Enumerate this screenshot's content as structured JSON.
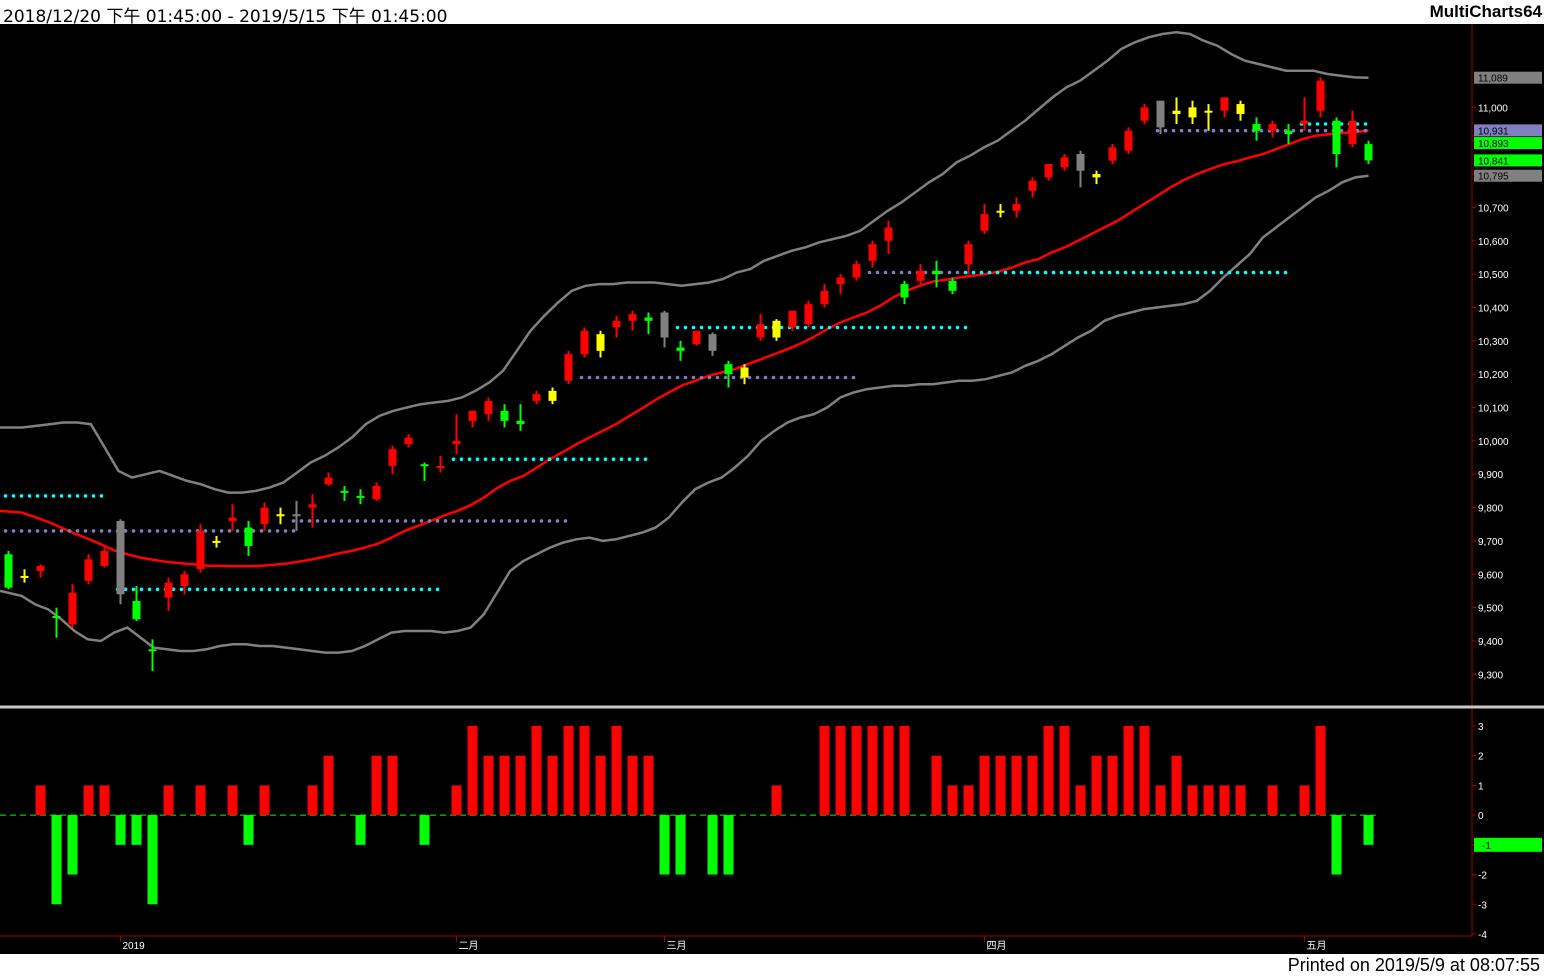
{
  "header": {
    "date_range": "2018/12/20 下午 01:45:00 - 2019/5/15 下午 01:45:00",
    "app_name": "MultiCharts64"
  },
  "footer": {
    "printed": "Printed on 2019/5/9 at 08:07:55"
  },
  "colors": {
    "up": "#ff0000",
    "down": "#00ff00",
    "yellow": "#ffff00",
    "gray": "#808080",
    "cyan": "#00ffff",
    "purple": "#8080c0",
    "background": "#000000"
  },
  "chart_data": [
    {
      "type": "candlestick",
      "title": "",
      "x_labels": [
        "2019",
        "二月",
        "三月",
        "四月",
        "五月"
      ],
      "y_ticks": [
        9300,
        9400,
        9500,
        9600,
        9700,
        9800,
        9900,
        10000,
        10100,
        10200,
        10300,
        10400,
        10500,
        10600,
        10700,
        10800,
        10900,
        11000
      ],
      "ylim": [
        9220,
        11250
      ],
      "price_tags": [
        {
          "value": 11089,
          "label": "11,089",
          "color": "#808080"
        },
        {
          "value": 10931,
          "label": "10,931",
          "color": "#8080c0"
        },
        {
          "value": 10893,
          "label": "10,893",
          "color": "#00ff00"
        },
        {
          "value": 10841,
          "label": "10,841",
          "color": "#00ff00"
        },
        {
          "value": 10795,
          "label": "10,795",
          "color": "#808080"
        }
      ],
      "candles": [
        {
          "o": 9660,
          "h": 9670,
          "l": 9555,
          "c": 9560,
          "col": "g"
        },
        {
          "o": 9595,
          "h": 9615,
          "l": 9575,
          "c": 9595,
          "col": "y"
        },
        {
          "o": 9610,
          "h": 9630,
          "l": 9590,
          "c": 9625,
          "col": "r"
        },
        {
          "o": 9475,
          "h": 9500,
          "l": 9410,
          "c": 9475,
          "col": "g"
        },
        {
          "o": 9450,
          "h": 9570,
          "l": 9440,
          "c": 9545,
          "col": "r"
        },
        {
          "o": 9580,
          "h": 9660,
          "l": 9570,
          "c": 9645,
          "col": "r"
        },
        {
          "o": 9625,
          "h": 9680,
          "l": 9620,
          "c": 9670,
          "col": "r"
        },
        {
          "o": 9760,
          "h": 9765,
          "l": 9510,
          "c": 9540,
          "col": "gr"
        },
        {
          "o": 9520,
          "h": 9565,
          "l": 9460,
          "c": 9465,
          "col": "g"
        },
        {
          "o": 9375,
          "h": 9405,
          "l": 9310,
          "c": 9375,
          "col": "g"
        },
        {
          "o": 9530,
          "h": 9590,
          "l": 9490,
          "c": 9575,
          "col": "r"
        },
        {
          "o": 9565,
          "h": 9610,
          "l": 9540,
          "c": 9600,
          "col": "r"
        },
        {
          "o": 9615,
          "h": 9750,
          "l": 9605,
          "c": 9730,
          "col": "r"
        },
        {
          "o": 9700,
          "h": 9715,
          "l": 9680,
          "c": 9700,
          "col": "y"
        },
        {
          "o": 9760,
          "h": 9810,
          "l": 9730,
          "c": 9770,
          "col": "r"
        },
        {
          "o": 9740,
          "h": 9760,
          "l": 9655,
          "c": 9685,
          "col": "g"
        },
        {
          "o": 9750,
          "h": 9815,
          "l": 9730,
          "c": 9800,
          "col": "r"
        },
        {
          "o": 9780,
          "h": 9800,
          "l": 9750,
          "c": 9780,
          "col": "y"
        },
        {
          "o": 9780,
          "h": 9820,
          "l": 9730,
          "c": 9780,
          "col": "gr"
        },
        {
          "o": 9800,
          "h": 9840,
          "l": 9740,
          "c": 9810,
          "col": "r"
        },
        {
          "o": 9870,
          "h": 9905,
          "l": 9865,
          "c": 9890,
          "col": "r"
        },
        {
          "o": 9850,
          "h": 9865,
          "l": 9820,
          "c": 9850,
          "col": "g"
        },
        {
          "o": 9835,
          "h": 9855,
          "l": 9810,
          "c": 9830,
          "col": "g"
        },
        {
          "o": 9825,
          "h": 9875,
          "l": 9820,
          "c": 9865,
          "col": "r"
        },
        {
          "o": 9925,
          "h": 9985,
          "l": 9900,
          "c": 9975,
          "col": "r"
        },
        {
          "o": 9990,
          "h": 10020,
          "l": 9980,
          "c": 10010,
          "col": "r"
        },
        {
          "o": 9930,
          "h": 9935,
          "l": 9880,
          "c": 9930,
          "col": "g"
        },
        {
          "o": 9920,
          "h": 9955,
          "l": 9905,
          "c": 9925,
          "col": "r"
        },
        {
          "o": 9990,
          "h": 10080,
          "l": 9960,
          "c": 10000,
          "col": "r"
        },
        {
          "o": 10060,
          "h": 10090,
          "l": 10040,
          "c": 10090,
          "col": "r"
        },
        {
          "o": 10080,
          "h": 10130,
          "l": 10060,
          "c": 10120,
          "col": "r"
        },
        {
          "o": 10090,
          "h": 10110,
          "l": 10040,
          "c": 10060,
          "col": "g"
        },
        {
          "o": 10060,
          "h": 10110,
          "l": 10030,
          "c": 10050,
          "col": "g"
        },
        {
          "o": 10120,
          "h": 10150,
          "l": 10110,
          "c": 10140,
          "col": "r"
        },
        {
          "o": 10150,
          "h": 10160,
          "l": 10110,
          "c": 10120,
          "col": "y"
        },
        {
          "o": 10180,
          "h": 10270,
          "l": 10170,
          "c": 10260,
          "col": "r"
        },
        {
          "o": 10260,
          "h": 10340,
          "l": 10250,
          "c": 10330,
          "col": "r"
        },
        {
          "o": 10320,
          "h": 10330,
          "l": 10250,
          "c": 10270,
          "col": "y"
        },
        {
          "o": 10340,
          "h": 10375,
          "l": 10310,
          "c": 10360,
          "col": "r"
        },
        {
          "o": 10360,
          "h": 10390,
          "l": 10330,
          "c": 10380,
          "col": "r"
        },
        {
          "o": 10370,
          "h": 10385,
          "l": 10320,
          "c": 10360,
          "col": "g"
        },
        {
          "o": 10385,
          "h": 10390,
          "l": 10280,
          "c": 10310,
          "col": "gr"
        },
        {
          "o": 10280,
          "h": 10300,
          "l": 10240,
          "c": 10270,
          "col": "g"
        },
        {
          "o": 10290,
          "h": 10330,
          "l": 10285,
          "c": 10330,
          "col": "r"
        },
        {
          "o": 10320,
          "h": 10325,
          "l": 10255,
          "c": 10270,
          "col": "gr"
        },
        {
          "o": 10230,
          "h": 10240,
          "l": 10160,
          "c": 10200,
          "col": "g"
        },
        {
          "o": 10190,
          "h": 10230,
          "l": 10170,
          "c": 10220,
          "col": "y"
        },
        {
          "o": 10310,
          "h": 10380,
          "l": 10300,
          "c": 10350,
          "col": "r"
        },
        {
          "o": 10360,
          "h": 10365,
          "l": 10300,
          "c": 10310,
          "col": "y"
        },
        {
          "o": 10340,
          "h": 10390,
          "l": 10330,
          "c": 10390,
          "col": "r"
        },
        {
          "o": 10350,
          "h": 10420,
          "l": 10340,
          "c": 10410,
          "col": "r"
        },
        {
          "o": 10410,
          "h": 10470,
          "l": 10400,
          "c": 10450,
          "col": "r"
        },
        {
          "o": 10470,
          "h": 10500,
          "l": 10440,
          "c": 10490,
          "col": "r"
        },
        {
          "o": 10490,
          "h": 10540,
          "l": 10480,
          "c": 10530,
          "col": "r"
        },
        {
          "o": 10540,
          "h": 10600,
          "l": 10520,
          "c": 10590,
          "col": "r"
        },
        {
          "o": 10600,
          "h": 10660,
          "l": 10560,
          "c": 10640,
          "col": "r"
        },
        {
          "o": 10470,
          "h": 10480,
          "l": 10410,
          "c": 10430,
          "col": "g"
        },
        {
          "o": 10480,
          "h": 10530,
          "l": 10470,
          "c": 10510,
          "col": "r"
        },
        {
          "o": 10510,
          "h": 10540,
          "l": 10460,
          "c": 10500,
          "col": "g"
        },
        {
          "o": 10480,
          "h": 10490,
          "l": 10440,
          "c": 10450,
          "col": "g"
        },
        {
          "o": 10530,
          "h": 10600,
          "l": 10500,
          "c": 10590,
          "col": "r"
        },
        {
          "o": 10630,
          "h": 10710,
          "l": 10620,
          "c": 10680,
          "col": "r"
        },
        {
          "o": 10690,
          "h": 10710,
          "l": 10670,
          "c": 10690,
          "col": "y"
        },
        {
          "o": 10690,
          "h": 10730,
          "l": 10670,
          "c": 10710,
          "col": "r"
        },
        {
          "o": 10750,
          "h": 10790,
          "l": 10730,
          "c": 10780,
          "col": "r"
        },
        {
          "o": 10790,
          "h": 10830,
          "l": 10780,
          "c": 10830,
          "col": "r"
        },
        {
          "o": 10820,
          "h": 10860,
          "l": 10810,
          "c": 10850,
          "col": "r"
        },
        {
          "o": 10860,
          "h": 10870,
          "l": 10760,
          "c": 10810,
          "col": "gr"
        },
        {
          "o": 10800,
          "h": 10810,
          "l": 10770,
          "c": 10790,
          "col": "y"
        },
        {
          "o": 10840,
          "h": 10890,
          "l": 10830,
          "c": 10880,
          "col": "r"
        },
        {
          "o": 10870,
          "h": 10940,
          "l": 10860,
          "c": 10930,
          "col": "r"
        },
        {
          "o": 10960,
          "h": 11010,
          "l": 10950,
          "c": 11000,
          "col": "r"
        },
        {
          "o": 10940,
          "h": 11020,
          "l": 10920,
          "c": 11020,
          "col": "gr"
        },
        {
          "o": 10990,
          "h": 11030,
          "l": 10950,
          "c": 10980,
          "col": "y"
        },
        {
          "o": 11000,
          "h": 11020,
          "l": 10950,
          "c": 10970,
          "col": "y"
        },
        {
          "o": 10990,
          "h": 11010,
          "l": 10930,
          "c": 10990,
          "col": "y"
        },
        {
          "o": 10990,
          "h": 11030,
          "l": 10970,
          "c": 11030,
          "col": "r"
        },
        {
          "o": 10980,
          "h": 11020,
          "l": 10960,
          "c": 11010,
          "col": "y"
        },
        {
          "o": 10950,
          "h": 10970,
          "l": 10900,
          "c": 10930,
          "col": "g"
        },
        {
          "o": 10930,
          "h": 10960,
          "l": 10910,
          "c": 10950,
          "col": "r"
        },
        {
          "o": 10920,
          "h": 10950,
          "l": 10890,
          "c": 10930,
          "col": "g"
        },
        {
          "o": 10950,
          "h": 11030,
          "l": 10930,
          "c": 10960,
          "col": "r"
        },
        {
          "o": 10990,
          "h": 11090,
          "l": 10970,
          "c": 11080,
          "col": "r"
        },
        {
          "o": 10960,
          "h": 10970,
          "l": 10820,
          "c": 10860,
          "col": "g"
        },
        {
          "o": 10890,
          "h": 10990,
          "l": 10880,
          "c": 10960,
          "col": "r"
        },
        {
          "o": 10890,
          "h": 10900,
          "l": 10830,
          "c": 10841,
          "col": "g"
        }
      ],
      "moving_average": [
        9790,
        9785,
        9772,
        9757,
        9740,
        9722,
        9707,
        9690,
        9672,
        9660,
        9650,
        9643,
        9637,
        9633,
        9630,
        9626,
        9625,
        9624,
        9624,
        9625,
        9628,
        9632,
        9638,
        9645,
        9653,
        9663,
        9670,
        9680,
        9692,
        9710,
        9730,
        9745,
        9760,
        9776,
        9790,
        9807,
        9830,
        9858,
        9880,
        9895,
        9920,
        9945,
        9967,
        9990,
        10010,
        10030,
        10050,
        10074,
        10098,
        10123,
        10145,
        10166,
        10180,
        10195,
        10205,
        10215,
        10230,
        10245,
        10260,
        10275,
        10292,
        10312,
        10335,
        10355,
        10370,
        10385,
        10405,
        10430,
        10450,
        10465,
        10478,
        10483,
        10490,
        10495,
        10500,
        10508,
        10520,
        10535,
        10545,
        10565,
        10580,
        10600,
        10620,
        10640,
        10660,
        10685,
        10710,
        10735,
        10760,
        10782,
        10800,
        10815,
        10829,
        10838,
        10850,
        10860,
        10875,
        10890,
        10905,
        10915,
        10920,
        10923,
        10926,
        10931
      ],
      "upper_band": [
        10040,
        10040,
        10045,
        10050,
        10055,
        10055,
        10050,
        9980,
        9910,
        9890,
        9900,
        9910,
        9895,
        9880,
        9870,
        9855,
        9845,
        9845,
        9850,
        9860,
        9875,
        9905,
        9935,
        9955,
        9980,
        10010,
        10050,
        10075,
        10090,
        10100,
        10110,
        10115,
        10120,
        10130,
        10150,
        10175,
        10210,
        10270,
        10330,
        10375,
        10415,
        10450,
        10465,
        10470,
        10470,
        10475,
        10475,
        10475,
        10470,
        10465,
        10470,
        10475,
        10485,
        10505,
        10515,
        10540,
        10555,
        10570,
        10580,
        10595,
        10605,
        10615,
        10630,
        10660,
        10690,
        10715,
        10745,
        10775,
        10800,
        10835,
        10855,
        10880,
        10900,
        10930,
        10960,
        10995,
        11030,
        11060,
        11080,
        11110,
        11140,
        11175,
        11195,
        11210,
        11220,
        11225,
        11220,
        11200,
        11185,
        11160,
        11140,
        11130,
        11120,
        11110,
        11110,
        11110,
        11100,
        11095,
        11090,
        11089
      ],
      "lower_band": [
        9550,
        9535,
        9510,
        9495,
        9465,
        9430,
        9405,
        9400,
        9425,
        9440,
        9410,
        9380,
        9375,
        9370,
        9370,
        9375,
        9385,
        9390,
        9390,
        9385,
        9385,
        9380,
        9375,
        9370,
        9365,
        9365,
        9370,
        9385,
        9405,
        9425,
        9430,
        9430,
        9430,
        9425,
        9430,
        9440,
        9480,
        9545,
        9610,
        9640,
        9660,
        9680,
        9695,
        9705,
        9710,
        9700,
        9705,
        9715,
        9725,
        9740,
        9770,
        9815,
        9855,
        9875,
        9890,
        9920,
        9955,
        10000,
        10030,
        10055,
        10070,
        10080,
        10100,
        10130,
        10145,
        10155,
        10160,
        10165,
        10165,
        10170,
        10170,
        10175,
        10180,
        10180,
        10185,
        10195,
        10205,
        10225,
        10240,
        10260,
        10285,
        10310,
        10330,
        10360,
        10375,
        10385,
        10395,
        10400,
        10405,
        10410,
        10420,
        10450,
        10490,
        10525,
        10560,
        10610,
        10640,
        10670,
        10700,
        10730,
        10750,
        10775,
        10790,
        10795
      ],
      "support_levels": [
        {
          "value": 9835,
          "from": 0,
          "to": 6,
          "color": "cyan"
        },
        {
          "value": 9730,
          "from": 0,
          "to": 18,
          "color": "purple"
        },
        {
          "value": 9760,
          "from": 18,
          "to": 35,
          "color": "purple"
        },
        {
          "value": 9555,
          "from": 7,
          "to": 27,
          "color": "cyan"
        },
        {
          "value": 9945,
          "from": 28,
          "to": 40,
          "color": "cyan"
        },
        {
          "value": 10190,
          "from": 36,
          "to": 53,
          "color": "purple"
        },
        {
          "value": 10340,
          "from": 42,
          "to": 60,
          "color": "cyan"
        },
        {
          "value": 10505,
          "from": 54,
          "to": 80,
          "color": "purple"
        },
        {
          "value": 10505,
          "from": 60,
          "to": 80,
          "color": "cyan"
        },
        {
          "value": 10930,
          "from": 72,
          "to": 85,
          "color": "purple"
        },
        {
          "value": 10950,
          "from": 81,
          "to": 85,
          "color": "cyan"
        }
      ]
    },
    {
      "type": "bar",
      "title": "",
      "y_ticks": [
        "3",
        "2",
        "1",
        "0",
        "-1",
        "-2",
        "-3",
        "-4"
      ],
      "ylim": [
        -4,
        3.4
      ],
      "current": {
        "value": -1,
        "label": "-1",
        "color": "#00ff00"
      },
      "values": [
        0,
        0,
        1,
        -3,
        -2,
        1,
        1,
        -1,
        -1,
        -3,
        1,
        0,
        1,
        0,
        1,
        -1,
        1,
        0,
        0,
        1,
        2,
        0,
        -1,
        2,
        2,
        0,
        -1,
        0,
        1,
        3,
        2,
        2,
        2,
        3,
        2,
        3,
        3,
        2,
        3,
        2,
        2,
        -2,
        -2,
        0,
        -2,
        -2,
        0,
        0,
        1,
        0,
        0,
        3,
        3,
        3,
        3,
        3,
        3,
        0,
        2,
        1,
        1,
        2,
        2,
        2,
        2,
        3,
        3,
        1,
        2,
        2,
        3,
        3,
        1,
        2,
        1,
        1,
        1,
        1,
        0,
        1,
        0,
        1,
        3,
        -2,
        0,
        -1
      ]
    }
  ]
}
